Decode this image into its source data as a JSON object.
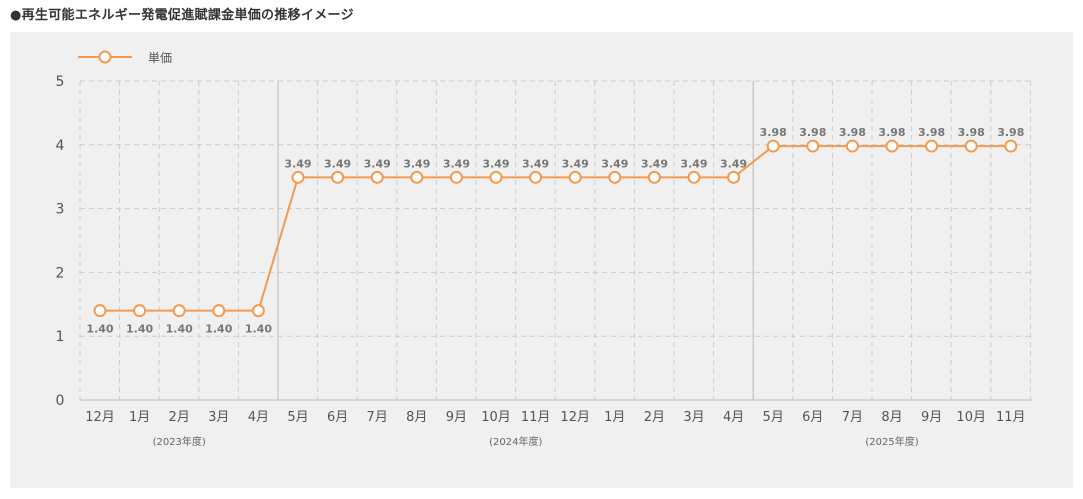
{
  "title": "●再生可能エネルギー発電促進賦課金単価の推移イメージ",
  "chart_data": {
    "type": "line",
    "title": "●再生可能エネルギー発電促進賦課金単価の推移イメージ",
    "xlabel": "",
    "ylabel": "",
    "ylim": [
      0,
      5
    ],
    "yticks": [
      "0",
      "1",
      "2",
      "3",
      "4",
      "5"
    ],
    "grid": true,
    "legend": "top-left",
    "categories": [
      "12月",
      "1月",
      "2月",
      "3月",
      "4月",
      "5月",
      "6月",
      "7月",
      "8月",
      "9月",
      "10月",
      "11月",
      "12月",
      "1月",
      "2月",
      "3月",
      "4月",
      "5月",
      "6月",
      "7月",
      "8月",
      "9月",
      "10月",
      "11月"
    ],
    "series": [
      {
        "name": "単価",
        "color": "#f39a4f",
        "values": [
          1.4,
          1.4,
          1.4,
          1.4,
          1.4,
          3.49,
          3.49,
          3.49,
          3.49,
          3.49,
          3.49,
          3.49,
          3.49,
          3.49,
          3.49,
          3.49,
          3.49,
          3.98,
          3.98,
          3.98,
          3.98,
          3.98,
          3.98,
          3.98
        ],
        "labels": [
          "1.40",
          "1.40",
          "1.40",
          "1.40",
          "1.40",
          "3.49",
          "3.49",
          "3.49",
          "3.49",
          "3.49",
          "3.49",
          "3.49",
          "3.49",
          "3.49",
          "3.49",
          "3.49",
          "3.49",
          "3.98",
          "3.98",
          "3.98",
          "3.98",
          "3.98",
          "3.98",
          "3.98"
        ]
      }
    ],
    "fiscal_years": [
      {
        "label": "(2023年度)",
        "from": 0,
        "to": 4
      },
      {
        "label": "(2024年度)",
        "from": 5,
        "to": 16
      },
      {
        "label": "(2025年度)",
        "from": 17,
        "to": 23
      }
    ],
    "colors": {
      "background": "#f0f0f0",
      "grid": "#cccccc",
      "year_divider": "#bbbbbb",
      "axis_text": "#555555",
      "data_label": "#777777"
    }
  }
}
